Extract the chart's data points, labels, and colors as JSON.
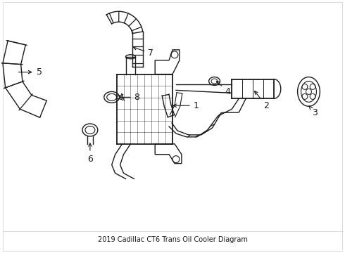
{
  "title": "2019 Cadillac CT6 Trans Oil Cooler Diagram",
  "background_color": "#ffffff",
  "line_color": "#1a1a1a",
  "label_color": "#1a1a1a",
  "fig_width": 4.9,
  "fig_height": 3.6,
  "dpi": 100,
  "border_color": "#cccccc"
}
